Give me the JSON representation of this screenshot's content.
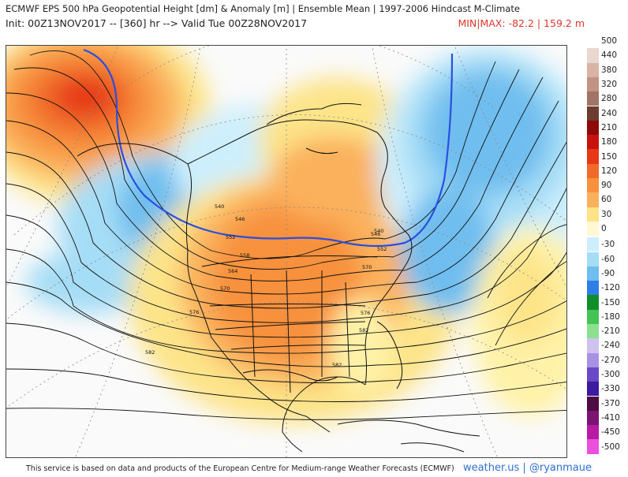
{
  "header": {
    "title": "ECMWF EPS 500 hPa Geopotential Height [dm] & Anomaly [m] | Ensemble Mean | 1997-2006 Hindcast M-Climate",
    "init": "Init: 00Z13NOV2017 -- [360] hr --> Valid Tue 00Z28NOV2017",
    "minmax": "MIN|MAX: -82.2 | 159.2 m"
  },
  "contour_labels": [
    "540",
    "546",
    "552",
    "558",
    "564",
    "570",
    "576",
    "582",
    "582",
    "582",
    "576",
    "570",
    "552",
    "546",
    "540"
  ],
  "colorbar": {
    "positive": [
      {
        "label": "500",
        "color": "#ffffff"
      },
      {
        "label": "440",
        "color": "#ead7cf"
      },
      {
        "label": "380",
        "color": "#d9b4a4"
      },
      {
        "label": "320",
        "color": "#c29383"
      },
      {
        "label": "280",
        "color": "#a07467"
      },
      {
        "label": "240",
        "color": "#6e3b31"
      },
      {
        "label": "210",
        "color": "#8e0a06"
      },
      {
        "label": "180",
        "color": "#c8120b"
      },
      {
        "label": "150",
        "color": "#e63717"
      },
      {
        "label": "120",
        "color": "#f06a2c"
      },
      {
        "label": "90",
        "color": "#f7913d"
      },
      {
        "label": "60",
        "color": "#fbb05c"
      },
      {
        "label": "30",
        "color": "#fde489"
      },
      {
        "label": "0",
        "color": "#fff8d2"
      }
    ],
    "negative": [
      {
        "label": "-30",
        "color": "#cdeffd"
      },
      {
        "label": "-60",
        "color": "#a6ddf6"
      },
      {
        "label": "-90",
        "color": "#6fbeef"
      },
      {
        "label": "-120",
        "color": "#2f7de6"
      },
      {
        "label": "-150",
        "color": "#128d2e"
      },
      {
        "label": "-180",
        "color": "#43c455"
      },
      {
        "label": "-210",
        "color": "#8de08d"
      },
      {
        "label": "-240",
        "color": "#cfc2ef"
      },
      {
        "label": "-270",
        "color": "#a890e3"
      },
      {
        "label": "-300",
        "color": "#6a49c6"
      },
      {
        "label": "-330",
        "color": "#3d1b9e"
      },
      {
        "label": "-370",
        "color": "#4e0c45"
      },
      {
        "label": "-410",
        "color": "#7a1470"
      },
      {
        "label": "-450",
        "color": "#b81aa6"
      },
      {
        "label": "-500",
        "color": "#ea4fde"
      }
    ]
  },
  "footer": {
    "note": "This service is based on data and products of the European Centre for Medium-range Weather Forecasts (ECMWF)",
    "brand": "weather.us | @ryanmaue"
  }
}
